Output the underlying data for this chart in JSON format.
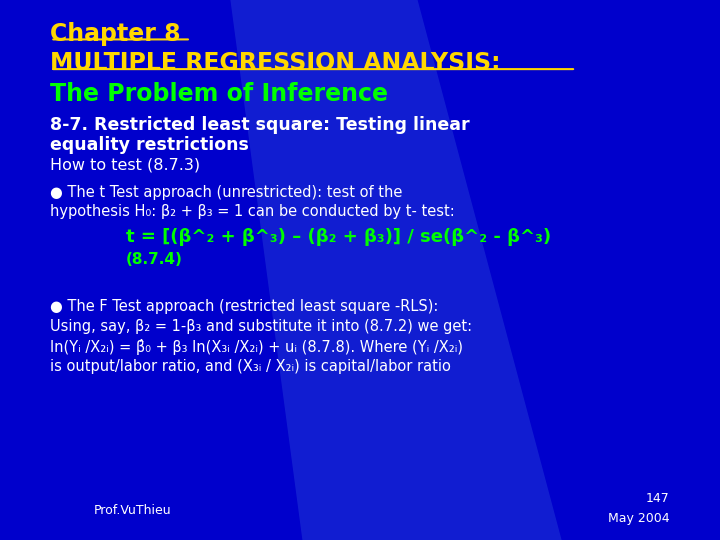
{
  "bg_color": "#0000CC",
  "title_line1": "Chapter 8",
  "title_line2": "MULTIPLE REGRESSION ANALYSIS:",
  "title_line3": "The Problem of Inference",
  "title_color": "#FFD700",
  "green_color": "#00FF00",
  "white_color": "#FFFFFF",
  "section_title_line1": "8-7. Restricted least square: Testing linear",
  "section_title_line2": "equality restrictions",
  "how_to": "How to test (8.7.3)",
  "bullet1_line1": "● The t Test approach (unrestricted): test of the",
  "bullet1_line2": "hypothesis H₀: β₂ + β₃ = 1 can be conducted by t- test:",
  "t_formula": "t = [(β^₂ + β^₃) – (β₂ + β₃)] / se(β^₂ - β^₃)",
  "t_ref": "(8.7.4)",
  "bullet2_line1": "● The F Test approach (restricted least square -RLS):",
  "bullet2_line2": "Using, say, β₂ = 1-β₃ and substitute it into (8.7.2) we get:",
  "bullet2_line3": "ln(Yᵢ /X₂ᵢ) = β̂₀ + β₃ ln(X₃ᵢ /X₂ᵢ) + uᵢ (8.7.8). Where (Yᵢ /X₂ᵢ)",
  "bullet2_line4": "is output/labor ratio, and (X₃ᵢ / X₂ᵢ) is capital/labor ratio",
  "footer_left": "Prof.VuThieu",
  "footer_right_line1": "147",
  "footer_right_line2": "May 2004"
}
